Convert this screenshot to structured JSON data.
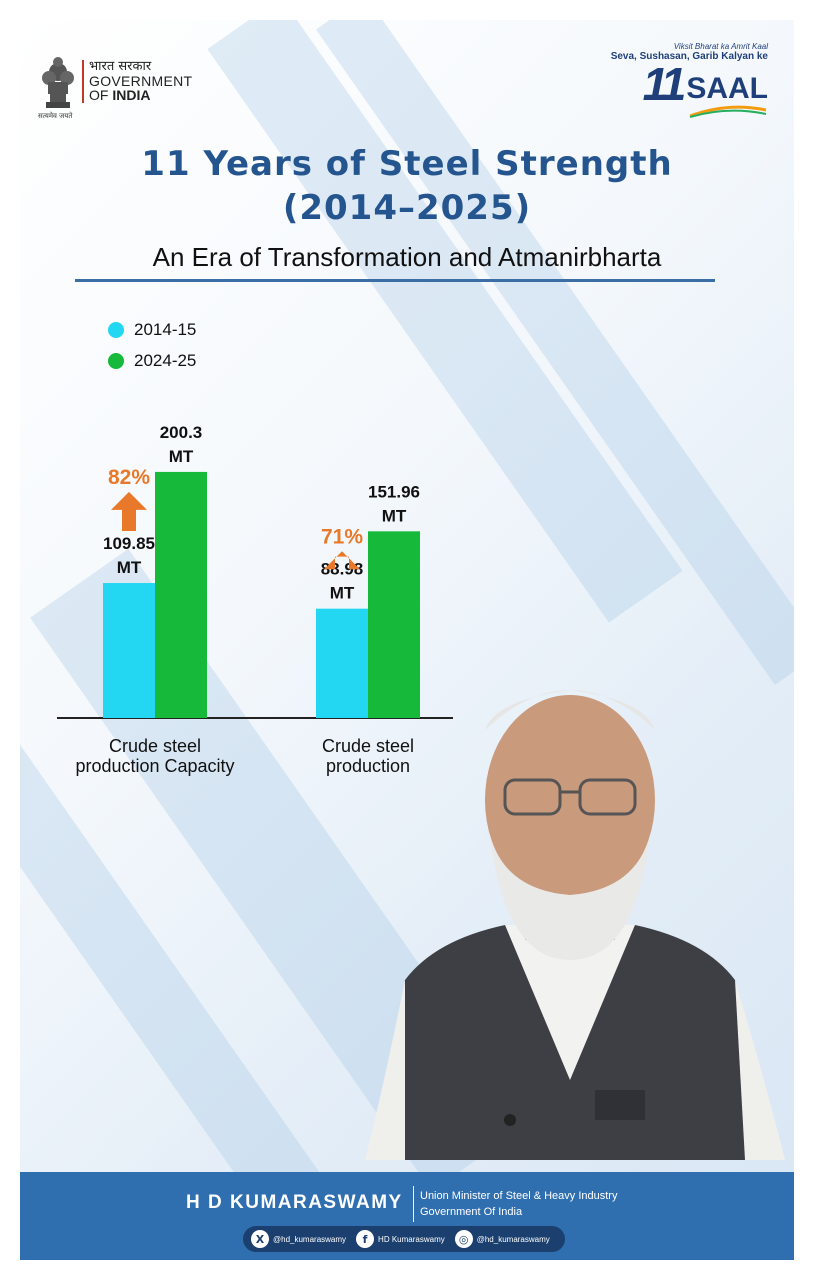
{
  "header": {
    "emblem_caption": "सत्यमेव जयते",
    "gov_hindi": "भारत सरकार",
    "gov_line1": "GOVERNMENT",
    "gov_line2_prefix": "OF ",
    "gov_line2_bold": "INDIA",
    "saal_tagline1": "Viksit Bharat ka Amrit Kaal",
    "saal_tagline2": "Seva, Sushasan, Garib Kalyan ke",
    "saal_number": "11",
    "saal_word": "SAAL"
  },
  "title_line1": "11 Years of Steel Strength",
  "title_line2": "(2014–2025)",
  "subtitle": "An Era of Transformation and Atmanirbharta",
  "colors": {
    "series_2014": "#23d6f2",
    "series_2024": "#17b93a",
    "arrow": "#e8792a",
    "title": "#25558f",
    "footer": "#2f6fb0"
  },
  "chart_data": {
    "type": "bar",
    "categories": [
      "Crude steel production Capacity",
      "Crude steel production"
    ],
    "category_lines": [
      [
        "Crude steel",
        "production Capacity"
      ],
      [
        "Crude steel",
        "production"
      ]
    ],
    "series": [
      {
        "name": "2014-15",
        "values": [
          109.85,
          88.98
        ],
        "labels": [
          [
            "109.85",
            "MT"
          ],
          [
            "88.98",
            "MT"
          ]
        ]
      },
      {
        "name": "2024-25",
        "values": [
          200.3,
          151.96
        ],
        "labels": [
          [
            "200.3",
            "MT"
          ],
          [
            "151.96",
            "MT"
          ]
        ]
      }
    ],
    "growth_labels": [
      "82%",
      "71%"
    ],
    "unit": "MT",
    "ylim": [
      0,
      210
    ],
    "legend_position": "top-left",
    "grid": false
  },
  "footer": {
    "name": "H D KUMARASWAMY",
    "role_line1": "Union Minister of Steel & Heavy Industry",
    "role_line2": "Government Of India",
    "socials": [
      {
        "icon": "x-icon",
        "glyph": "X",
        "handle": "@hd_kumaraswamy"
      },
      {
        "icon": "facebook-icon",
        "glyph": "f",
        "handle": "HD Kumaraswamy"
      },
      {
        "icon": "instagram-icon",
        "glyph": "◎",
        "handle": "@hd_kumaraswamy"
      }
    ]
  }
}
